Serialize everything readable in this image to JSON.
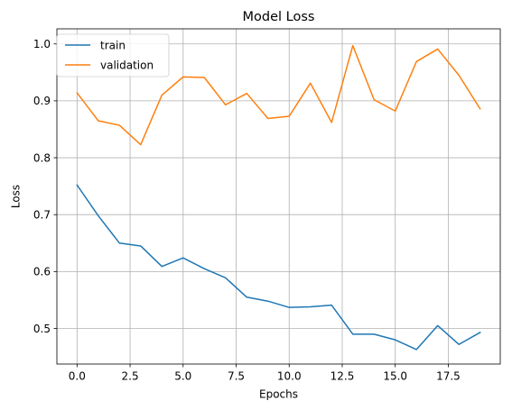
{
  "chart_data": {
    "type": "line",
    "title": "Model Loss",
    "xlabel": "Epochs",
    "ylabel": "Loss",
    "xlim": [
      -0.95,
      19.95
    ],
    "ylim": [
      0.4375,
      1.0265
    ],
    "xticks": [
      0.0,
      2.5,
      5.0,
      7.5,
      10.0,
      12.5,
      15.0,
      17.5
    ],
    "xtick_labels": [
      "0.0",
      "2.5",
      "5.0",
      "7.5",
      "10.0",
      "12.5",
      "15.0",
      "17.5"
    ],
    "yticks": [
      0.5,
      0.6,
      0.7,
      0.8,
      0.9,
      1.0
    ],
    "ytick_labels": [
      "0.5",
      "0.6",
      "0.7",
      "0.8",
      "0.9",
      "1.0"
    ],
    "grid": true,
    "legend_position": "top-left",
    "x": [
      0,
      1,
      2,
      3,
      4,
      5,
      6,
      7,
      8,
      9,
      10,
      11,
      12,
      13,
      14,
      15,
      16,
      17,
      18,
      19
    ],
    "series": [
      {
        "name": "train",
        "color": "#1f77b4",
        "values": [
          0.752,
          0.698,
          0.65,
          0.645,
          0.609,
          0.624,
          0.605,
          0.589,
          0.555,
          0.548,
          0.537,
          0.538,
          0.541,
          0.49,
          0.49,
          0.48,
          0.463,
          0.505,
          0.472,
          0.493
        ]
      },
      {
        "name": "validation",
        "color": "#ff7f0e",
        "values": [
          0.914,
          0.865,
          0.857,
          0.823,
          0.91,
          0.942,
          0.941,
          0.893,
          0.913,
          0.869,
          0.873,
          0.931,
          0.862,
          0.997,
          0.902,
          0.882,
          0.969,
          0.991,
          0.945,
          0.886
        ]
      }
    ]
  }
}
